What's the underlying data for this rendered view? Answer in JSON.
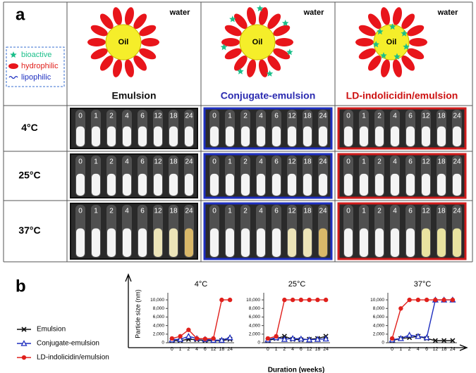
{
  "panel_a": {
    "label": "a",
    "water": "water",
    "oil": "Oil",
    "columns": [
      "Emulsion",
      "Conjugate-emulsion",
      "LD-indolicidin/emulsion"
    ],
    "rows": [
      "4°C",
      "25°C",
      "37°C"
    ],
    "tube_labels": [
      "0",
      "1",
      "2",
      "4",
      "6",
      "12",
      "18",
      "24"
    ],
    "legend": [
      "bioactive",
      "hydrophilic",
      "lipophilic"
    ]
  },
  "panel_b": {
    "label": "b",
    "ylabel": "Particle size (nm)",
    "xlabel": "Duration (weeks)"
  },
  "chart_data": [
    {
      "type": "line",
      "title": "4°C",
      "categories": [
        "0",
        "1",
        "2",
        "4",
        "6",
        "12",
        "18",
        "24"
      ],
      "ylim": [
        0,
        11000
      ],
      "yticks": [
        0,
        {
          "value": 2000,
          "label": "2,000"
        },
        {
          "value": 4000,
          "label": "4,000"
        },
        {
          "value": 6000,
          "label": "6,000"
        },
        {
          "value": 8000,
          "label": "8,000"
        },
        {
          "value": 10000,
          "label": "10,000"
        }
      ],
      "series": [
        {
          "name": "Emulsion",
          "color": "#111111",
          "marker": "x",
          "values": [
            500,
            500,
            800,
            700,
            500,
            500,
            500,
            800
          ]
        },
        {
          "name": "Conjugate-emulsion",
          "color": "#1f2fbf",
          "marker": "triangle",
          "values": [
            700,
            800,
            1500,
            1000,
            800,
            600,
            600,
            1200
          ]
        },
        {
          "name": "LD-indolicidin/emulsion",
          "color": "#e0201c",
          "marker": "circle",
          "values": [
            1000,
            1500,
            3000,
            1000,
            900,
            1000,
            10000,
            10000
          ]
        }
      ]
    },
    {
      "type": "line",
      "title": "25°C",
      "categories": [
        "0",
        "1",
        "2",
        "4",
        "6",
        "12",
        "18",
        "24"
      ],
      "ylim": [
        0,
        11000
      ],
      "yticks": [
        0,
        {
          "value": 2000,
          "label": "2,000"
        },
        {
          "value": 4000,
          "label": "4,000"
        },
        {
          "value": 6000,
          "label": "6,000"
        },
        {
          "value": 8000,
          "label": "8,000"
        },
        {
          "value": 10000,
          "label": "10,000"
        }
      ],
      "series": [
        {
          "name": "Emulsion",
          "color": "#111111",
          "marker": "x",
          "values": [
            500,
            1000,
            1500,
            800,
            700,
            800,
            1000,
            1500
          ]
        },
        {
          "name": "Conjugate-emulsion",
          "color": "#1f2fbf",
          "marker": "triangle",
          "values": [
            700,
            1200,
            800,
            1000,
            900,
            700,
            800,
            900
          ]
        },
        {
          "name": "LD-indolicidin/emulsion",
          "color": "#e0201c",
          "marker": "circle",
          "values": [
            1000,
            1500,
            10000,
            10000,
            10000,
            10000,
            10000,
            10000
          ]
        }
      ]
    },
    {
      "type": "line",
      "title": "37°C",
      "categories": [
        "0",
        "1",
        "2",
        "4",
        "6",
        "12",
        "18",
        "24"
      ],
      "ylim": [
        0,
        11000
      ],
      "yticks": [
        0,
        {
          "value": 2000,
          "label": "2,000"
        },
        {
          "value": 4000,
          "label": "4,000"
        },
        {
          "value": 6000,
          "label": "6,000"
        },
        {
          "value": 8000,
          "label": "8,000"
        },
        {
          "value": 10000,
          "label": "10,000"
        }
      ],
      "series": [
        {
          "name": "Emulsion",
          "color": "#111111",
          "marker": "x",
          "values": [
            500,
            1000,
            1200,
            1500,
            1000,
            500,
            500,
            500
          ]
        },
        {
          "name": "Conjugate-emulsion",
          "color": "#1f2fbf",
          "marker": "triangle",
          "values": [
            700,
            1000,
            1800,
            1500,
            1200,
            10000,
            10000,
            10000
          ]
        },
        {
          "name": "LD-indolicidin/emulsion",
          "color": "#e0201c",
          "marker": "circle",
          "values": [
            1000,
            8000,
            10000,
            10000,
            10000,
            10000,
            10000,
            10000
          ]
        }
      ]
    }
  ]
}
